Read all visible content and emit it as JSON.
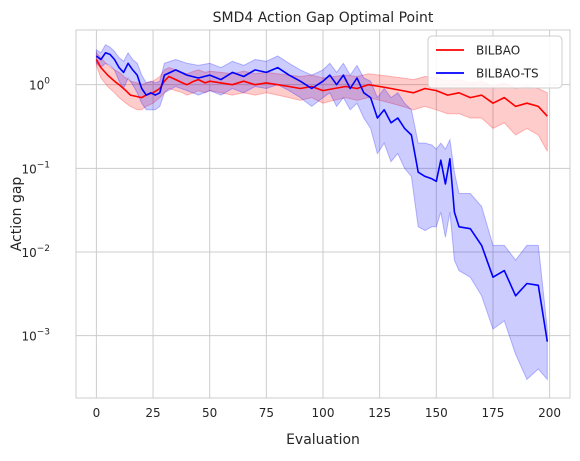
{
  "chart_data": {
    "type": "line",
    "title": "SMD4 Action Gap Optimal Point",
    "xlabel": "Evaluation",
    "ylabel": "Action gap",
    "yscale": "log",
    "xlim": [
      -9,
      209
    ],
    "ylim": [
      0.00018,
      4.5
    ],
    "grid": true,
    "legend_position": "top-right",
    "x_ticks": [
      0,
      25,
      50,
      75,
      100,
      125,
      150,
      175,
      200
    ],
    "x_tick_labels": [
      "0",
      "25",
      "50",
      "75",
      "100",
      "125",
      "150",
      "175",
      "200"
    ],
    "y_ticks": [
      0.001,
      0.01,
      0.1,
      1
    ],
    "y_tick_labels": [
      {
        "base": "10",
        "exp": "−3"
      },
      {
        "base": "10",
        "exp": "−2"
      },
      {
        "base": "10",
        "exp": "−1"
      },
      {
        "base": "10",
        "exp": "0"
      }
    ],
    "series": [
      {
        "name": "BILBAO",
        "color": "#ff0000",
        "band_color": "#ff0000",
        "x": [
          0,
          2,
          5,
          8,
          10,
          13,
          15,
          18,
          20,
          22,
          25,
          28,
          30,
          32,
          35,
          38,
          40,
          43,
          45,
          48,
          50,
          55,
          60,
          65,
          70,
          75,
          80,
          85,
          90,
          95,
          100,
          105,
          110,
          115,
          120,
          125,
          130,
          135,
          140,
          145,
          150,
          155,
          160,
          165,
          170,
          175,
          180,
          185,
          190,
          195,
          199
        ],
        "y": [
          2.0,
          1.6,
          1.3,
          1.1,
          1.0,
          0.85,
          0.75,
          0.72,
          0.7,
          0.75,
          0.8,
          0.9,
          1.1,
          1.25,
          1.15,
          1.05,
          1.0,
          1.1,
          1.15,
          1.05,
          1.1,
          1.05,
          1.0,
          1.1,
          1.0,
          1.05,
          1.0,
          0.95,
          0.9,
          0.95,
          0.85,
          0.9,
          0.95,
          0.9,
          1.0,
          0.95,
          0.9,
          0.85,
          0.8,
          0.9,
          0.85,
          0.75,
          0.8,
          0.7,
          0.75,
          0.6,
          0.7,
          0.55,
          0.6,
          0.55,
          0.42
        ],
        "lower": [
          1.7,
          1.2,
          0.95,
          0.8,
          0.7,
          0.6,
          0.55,
          0.5,
          0.5,
          0.55,
          0.6,
          0.7,
          0.8,
          0.9,
          0.85,
          0.8,
          0.75,
          0.8,
          0.85,
          0.8,
          0.85,
          0.8,
          0.75,
          0.8,
          0.75,
          0.8,
          0.75,
          0.7,
          0.65,
          0.7,
          0.6,
          0.65,
          0.7,
          0.65,
          0.7,
          0.65,
          0.6,
          0.55,
          0.5,
          0.55,
          0.5,
          0.45,
          0.45,
          0.4,
          0.4,
          0.3,
          0.35,
          0.25,
          0.3,
          0.25,
          0.16
        ],
        "upper": [
          2.4,
          2.1,
          1.7,
          1.5,
          1.4,
          1.2,
          1.1,
          1.05,
          1.0,
          1.05,
          1.1,
          1.25,
          1.5,
          1.6,
          1.5,
          1.4,
          1.35,
          1.45,
          1.5,
          1.4,
          1.45,
          1.4,
          1.35,
          1.45,
          1.35,
          1.4,
          1.35,
          1.3,
          1.25,
          1.3,
          1.2,
          1.25,
          1.3,
          1.25,
          1.35,
          1.3,
          1.25,
          1.2,
          1.15,
          1.25,
          1.2,
          1.1,
          1.15,
          1.05,
          1.1,
          0.95,
          1.05,
          0.9,
          0.95,
          0.9,
          0.8
        ]
      },
      {
        "name": "BILBAO-TS",
        "color": "#0000ff",
        "band_color": "#0000ff",
        "x": [
          0,
          2,
          4,
          6,
          8,
          10,
          12,
          14,
          16,
          18,
          20,
          22,
          24,
          26,
          28,
          30,
          35,
          40,
          45,
          50,
          55,
          60,
          65,
          70,
          75,
          80,
          85,
          90,
          95,
          100,
          103,
          106,
          109,
          112,
          115,
          118,
          121,
          124,
          127,
          130,
          133,
          136,
          139,
          142,
          145,
          148,
          150,
          152,
          154,
          156,
          158,
          160,
          165,
          170,
          175,
          180,
          185,
          190,
          195,
          199
        ],
        "y": [
          2.2,
          2.0,
          2.4,
          2.3,
          2.0,
          1.6,
          1.4,
          1.8,
          1.5,
          1.3,
          0.9,
          0.75,
          0.8,
          0.75,
          0.8,
          1.3,
          1.5,
          1.3,
          1.2,
          1.3,
          1.15,
          1.4,
          1.25,
          1.5,
          1.4,
          1.6,
          1.3,
          1.1,
          0.9,
          1.1,
          1.3,
          1.0,
          1.3,
          0.9,
          1.2,
          0.8,
          0.7,
          0.4,
          0.5,
          0.35,
          0.4,
          0.3,
          0.25,
          0.09,
          0.08,
          0.075,
          0.07,
          0.125,
          0.065,
          0.13,
          0.03,
          0.02,
          0.019,
          0.012,
          0.005,
          0.006,
          0.003,
          0.0042,
          0.004,
          0.00085
        ],
        "lower": [
          1.8,
          1.6,
          1.8,
          1.7,
          1.5,
          1.1,
          0.9,
          1.2,
          1.0,
          0.8,
          0.6,
          0.5,
          0.5,
          0.5,
          0.55,
          0.8,
          0.95,
          0.85,
          0.75,
          0.85,
          0.75,
          0.9,
          0.8,
          0.95,
          0.9,
          1.0,
          0.85,
          0.7,
          0.55,
          0.7,
          0.8,
          0.55,
          0.7,
          0.5,
          0.6,
          0.4,
          0.3,
          0.15,
          0.2,
          0.12,
          0.15,
          0.1,
          0.08,
          0.02,
          0.018,
          0.02,
          0.02,
          0.03,
          0.015,
          0.03,
          0.008,
          0.006,
          0.005,
          0.003,
          0.0012,
          0.0015,
          0.0006,
          0.0003,
          0.0004,
          0.0003
        ],
        "upper": [
          2.6,
          2.4,
          3.0,
          2.8,
          2.5,
          2.1,
          1.9,
          2.4,
          2.0,
          1.8,
          1.3,
          1.05,
          1.1,
          1.05,
          1.1,
          1.8,
          2.0,
          1.8,
          1.7,
          1.8,
          1.6,
          1.9,
          1.7,
          2.0,
          1.9,
          2.2,
          1.8,
          1.5,
          1.3,
          1.5,
          1.8,
          1.4,
          1.8,
          1.3,
          1.7,
          1.2,
          1.1,
          0.7,
          0.9,
          0.7,
          0.8,
          0.6,
          0.5,
          0.2,
          0.2,
          0.19,
          0.17,
          0.2,
          0.17,
          0.22,
          0.09,
          0.05,
          0.05,
          0.035,
          0.012,
          0.012,
          0.008,
          0.012,
          0.012,
          0.0012
        ]
      }
    ]
  }
}
